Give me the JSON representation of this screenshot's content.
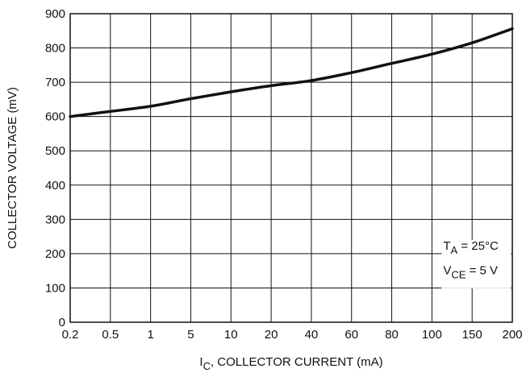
{
  "chart_data": {
    "type": "line",
    "xlabel": {
      "main": "I",
      "sub": "C",
      "rest": ", COLLECTOR CURRENT (mA)"
    },
    "ylabel": "COLLECTOR VOLTAGE (mV)",
    "categories": [
      "0.2",
      "0.5",
      "1",
      "5",
      "10",
      "20",
      "40",
      "60",
      "80",
      "100",
      "150",
      "200"
    ],
    "ylim": [
      0,
      900
    ],
    "yticks": [
      "0",
      "100",
      "200",
      "300",
      "400",
      "500",
      "600",
      "700",
      "800",
      "900"
    ],
    "grid": true,
    "series": [
      {
        "values": [
          600,
          615,
          630,
          652,
          672,
          690,
          705,
          728,
          755,
          782,
          815,
          856
        ]
      }
    ],
    "annotation": {
      "line1": {
        "main": "T",
        "sub": "A",
        "rest": " = 25°C"
      },
      "line2": {
        "main": "V",
        "sub": "CE",
        "rest": " = 5 V"
      }
    },
    "colors": {
      "line": "#111111",
      "grid": "#111111",
      "axis": "#111111"
    }
  }
}
